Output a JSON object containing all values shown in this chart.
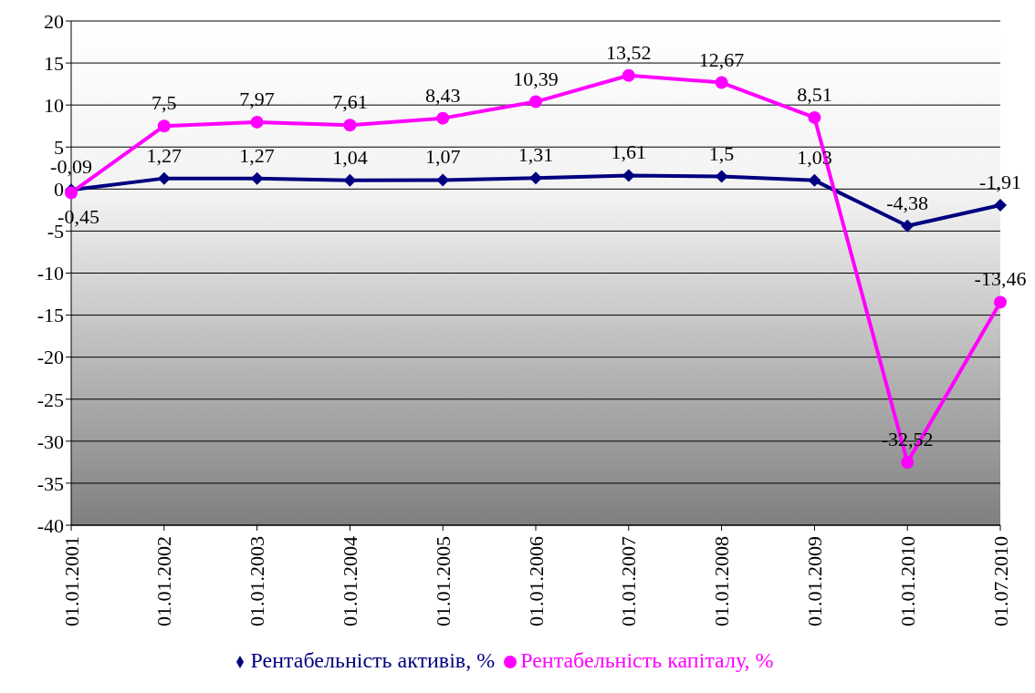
{
  "chart_data": {
    "type": "line",
    "categories": [
      "01.01.2001",
      "01.01.2002",
      "01.01.2003",
      "01.01.2004",
      "01.01.2005",
      "01.01.2006",
      "01.01.2007",
      "01.01.2008",
      "01.01.2009",
      "01.01.2010",
      "01.07.2010"
    ],
    "series": [
      {
        "name": "Рентабельність активів, %",
        "color": "#000080",
        "marker": "diamond",
        "values": [
          -0.09,
          1.27,
          1.27,
          1.04,
          1.07,
          1.31,
          1.61,
          1.5,
          1.03,
          -4.38,
          -1.91
        ],
        "value_labels": [
          "-0,09",
          "1,27",
          "1,27",
          "1,04",
          "1,07",
          "1,31",
          "1,61",
          "1,5",
          "1,03",
          "-4,38",
          "-1,91"
        ]
      },
      {
        "name": "Рентабельність капіталу, %",
        "color": "#ff00ff",
        "marker": "circle",
        "values": [
          -0.45,
          7.5,
          7.97,
          7.61,
          8.43,
          10.39,
          13.52,
          12.67,
          8.51,
          -32.52,
          -13.46
        ],
        "value_labels": [
          "-0,45",
          "7,5",
          "7,97",
          "7,61",
          "8,43",
          "10,39",
          "13,52",
          "12,67",
          "8,51",
          "-32,52",
          "-13,46"
        ]
      }
    ],
    "ylim": [
      -40,
      20
    ],
    "yticks": [
      -40,
      -35,
      -30,
      -25,
      -20,
      -15,
      -10,
      -5,
      0,
      5,
      10,
      15,
      20
    ],
    "grid": "y",
    "legend": "bottom",
    "line_style": "solid"
  }
}
